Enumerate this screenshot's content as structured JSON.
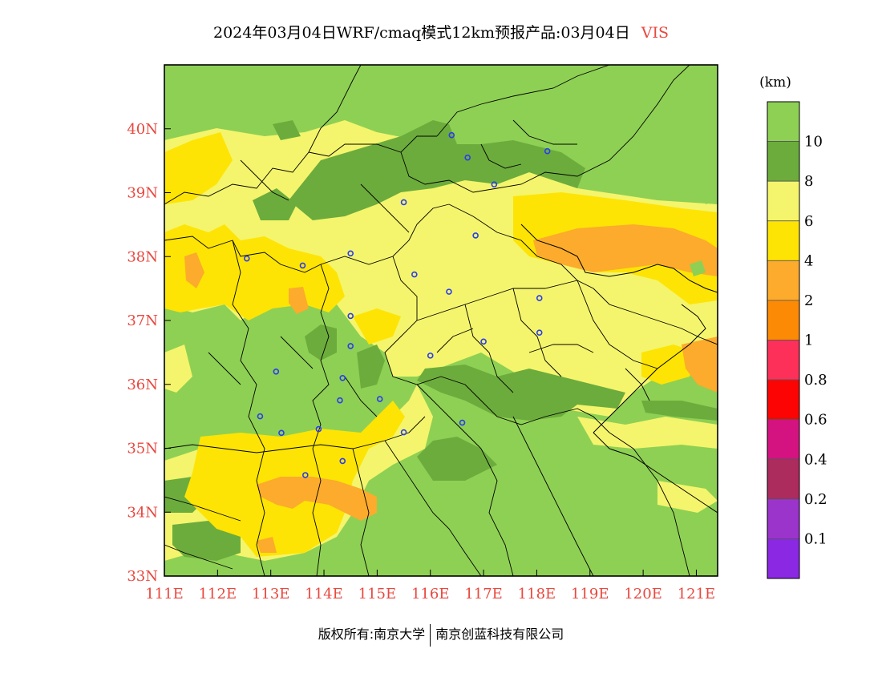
{
  "title": {
    "main": "2024年03月04日WRF/cmaq模式12km预报产品:03月04日",
    "variable": "VIS"
  },
  "colors": {
    "axis_label": "#e8483f",
    "station_marker": "#2a3cf0"
  },
  "map": {
    "lon_range": [
      111,
      121.4
    ],
    "lat_range": [
      33,
      41
    ],
    "lon_ticks": [
      {
        "value": 111,
        "label": "111E"
      },
      {
        "value": 112,
        "label": "112E"
      },
      {
        "value": 113,
        "label": "113E"
      },
      {
        "value": 114,
        "label": "114E"
      },
      {
        "value": 115,
        "label": "115E"
      },
      {
        "value": 116,
        "label": "116E"
      },
      {
        "value": 117,
        "label": "117E"
      },
      {
        "value": 118,
        "label": "118E"
      },
      {
        "value": 119,
        "label": "119E"
      },
      {
        "value": 120,
        "label": "120E"
      },
      {
        "value": 121,
        "label": "121E"
      }
    ],
    "lat_ticks": [
      {
        "value": 33,
        "label": "33N"
      },
      {
        "value": 34,
        "label": "34N"
      },
      {
        "value": 35,
        "label": "35N"
      },
      {
        "value": 36,
        "label": "36N"
      },
      {
        "value": 37,
        "label": "37N"
      },
      {
        "value": 38,
        "label": "38N"
      },
      {
        "value": 39,
        "label": "39N"
      },
      {
        "value": 40,
        "label": "40N"
      }
    ],
    "stations": [
      {
        "lon": 116.4,
        "lat": 39.9
      },
      {
        "lon": 116.7,
        "lat": 39.55
      },
      {
        "lon": 118.2,
        "lat": 39.65
      },
      {
        "lon": 117.2,
        "lat": 39.13
      },
      {
        "lon": 115.5,
        "lat": 38.85
      },
      {
        "lon": 116.85,
        "lat": 38.33
      },
      {
        "lon": 112.55,
        "lat": 37.97
      },
      {
        "lon": 113.6,
        "lat": 37.86
      },
      {
        "lon": 114.5,
        "lat": 38.05
      },
      {
        "lon": 115.7,
        "lat": 37.72
      },
      {
        "lon": 116.35,
        "lat": 37.45
      },
      {
        "lon": 118.05,
        "lat": 37.35
      },
      {
        "lon": 114.5,
        "lat": 37.07
      },
      {
        "lon": 118.05,
        "lat": 36.81
      },
      {
        "lon": 117.0,
        "lat": 36.67
      },
      {
        "lon": 114.5,
        "lat": 36.6
      },
      {
        "lon": 116.0,
        "lat": 36.45
      },
      {
        "lon": 113.1,
        "lat": 36.2
      },
      {
        "lon": 114.35,
        "lat": 36.1
      },
      {
        "lon": 115.05,
        "lat": 35.77
      },
      {
        "lon": 114.3,
        "lat": 35.75
      },
      {
        "lon": 112.8,
        "lat": 35.5
      },
      {
        "lon": 116.6,
        "lat": 35.4
      },
      {
        "lon": 113.9,
        "lat": 35.3
      },
      {
        "lon": 115.5,
        "lat": 35.25
      },
      {
        "lon": 113.2,
        "lat": 35.24
      },
      {
        "lon": 114.35,
        "lat": 34.8
      },
      {
        "lon": 113.65,
        "lat": 34.58
      }
    ]
  },
  "legend": {
    "unit": "(km)",
    "bins": [
      {
        "color": "#8ed054",
        "label": "10"
      },
      {
        "color": "#6cac3c",
        "label": "8"
      },
      {
        "color": "#f4f56c",
        "label": "6"
      },
      {
        "color": "#fde404",
        "label": "4"
      },
      {
        "color": "#fcab2c",
        "label": "2"
      },
      {
        "color": "#fc8a04",
        "label": "1"
      },
      {
        "color": "#fc3059",
        "label": "0.8"
      },
      {
        "color": "#fc0404",
        "label": "0.6"
      },
      {
        "color": "#d41381",
        "label": "0.4"
      },
      {
        "color": "#ac2c5d",
        "label": "0.2"
      },
      {
        "color": "#9b34cb",
        "label": "0.1"
      },
      {
        "color": "#8b28e4",
        "label": ""
      }
    ]
  },
  "footer": {
    "left": "版权所有:南京大学",
    "right": "南京创蓝科技有限公司"
  }
}
